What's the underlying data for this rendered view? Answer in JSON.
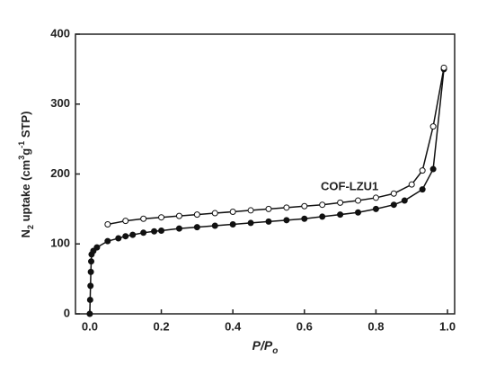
{
  "chart_data": {
    "type": "line",
    "xlabel": [
      "P/P",
      "o"
    ],
    "ylabel": [
      "N",
      "2",
      " uptake (cm",
      "3",
      "g",
      "-1",
      " STP)"
    ],
    "annotation": "COF-LZU1",
    "xlim": [
      -0.04,
      1.02
    ],
    "ylim": [
      0,
      400
    ],
    "xticks": [
      {
        "value": 0,
        "label": "0.0"
      },
      0.2,
      0.4,
      0.6,
      0.8,
      {
        "value": 1,
        "label": "1.0"
      }
    ],
    "yticks": [
      0,
      100,
      200,
      300,
      400
    ],
    "series": [
      {
        "color": "#111111",
        "marker": "filled",
        "x": [
          0.0,
          0.001,
          0.002,
          0.003,
          0.004,
          0.005,
          0.01,
          0.02,
          0.05,
          0.08,
          0.1,
          0.12,
          0.15,
          0.18,
          0.2,
          0.25,
          0.3,
          0.35,
          0.4,
          0.45,
          0.5,
          0.55,
          0.6,
          0.65,
          0.7,
          0.75,
          0.8,
          0.85,
          0.88,
          0.93,
          0.96,
          0.99
        ],
        "values": [
          0,
          20,
          40,
          60,
          75,
          85,
          90,
          95,
          104,
          108,
          111,
          113,
          116,
          118,
          119,
          122,
          124,
          126,
          128,
          130,
          132,
          134,
          136,
          139,
          142,
          145,
          150,
          156,
          162,
          178,
          207,
          350
        ]
      },
      {
        "color": "#111111",
        "marker": "open",
        "x": [
          0.99,
          0.96,
          0.93,
          0.9,
          0.85,
          0.8,
          0.75,
          0.7,
          0.65,
          0.6,
          0.55,
          0.5,
          0.45,
          0.4,
          0.35,
          0.3,
          0.25,
          0.2,
          0.15,
          0.1,
          0.05
        ],
        "values": [
          352,
          268,
          205,
          185,
          172,
          166,
          162,
          159,
          156,
          154,
          152,
          150,
          148,
          146,
          144,
          142,
          140,
          138,
          136,
          133,
          128
        ]
      }
    ]
  }
}
